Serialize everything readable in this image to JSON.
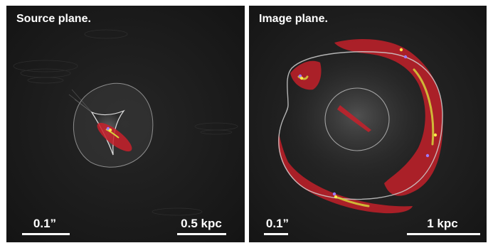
{
  "panels": {
    "source": {
      "title": "Source plane.",
      "angular_scale": "0.1”",
      "physical_scale": "0.5 kpc"
    },
    "image": {
      "title": "Image plane.",
      "angular_scale": "0.1”",
      "physical_scale": "1 kpc"
    }
  },
  "colors": {
    "background": "#1a1a1a",
    "emission": "#c8202a",
    "caustic_line": "#d8d8d8",
    "arc_highlight": "#d6d43a",
    "marker_yellow": "#ffe94a",
    "marker_violet": "#9d7bff"
  }
}
